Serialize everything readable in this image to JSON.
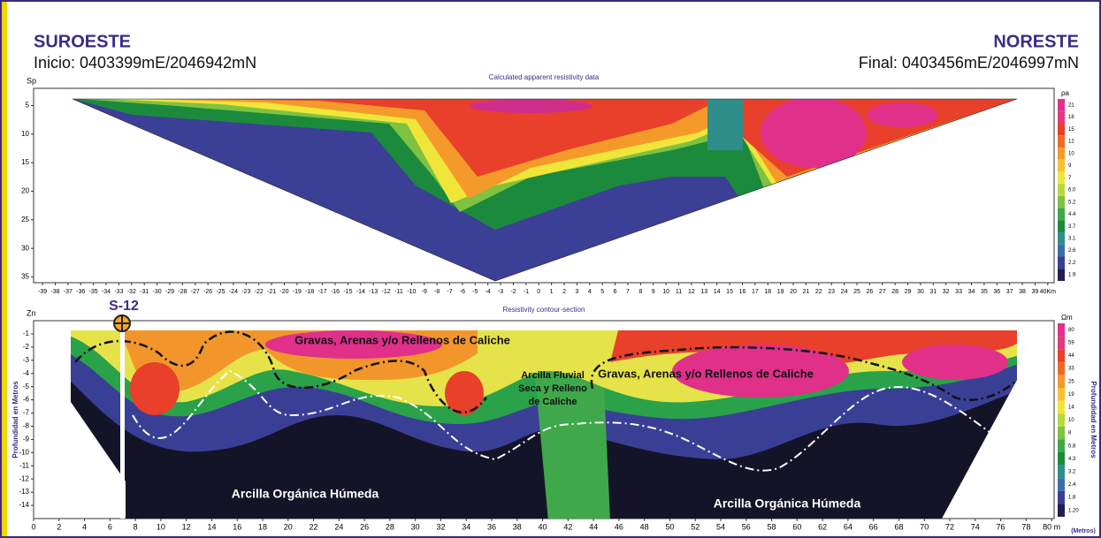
{
  "header": {
    "left_title": "SUROESTE",
    "left_subtitle": "Inicio: 0403399mE/2046942mN",
    "right_title": "NORESTE",
    "right_subtitle": "Final: 0403456mE/2046997mN"
  },
  "top_panel": {
    "title": "Calculated apparent resistivity data",
    "y_label": "Sp",
    "ylim": [
      2,
      36
    ],
    "yticks": [
      5,
      10,
      15,
      20,
      25,
      30,
      35
    ],
    "xlim": [
      -39.7,
      40.5
    ],
    "xticks": [
      -39,
      -38,
      -37,
      -36,
      -35,
      -34,
      -33,
      -32,
      -31,
      -30,
      -29,
      -28,
      -27,
      -26,
      -25,
      -24,
      -23,
      -22,
      -21,
      -20,
      -19,
      -18,
      -17,
      -16,
      -15,
      -14,
      -13,
      -12,
      -11,
      -10,
      -9,
      -8,
      -7,
      -6,
      -5,
      -4,
      -3,
      -2,
      -1,
      0,
      1,
      2,
      3,
      4,
      5,
      6,
      7,
      8,
      9,
      10,
      11,
      12,
      13,
      14,
      15,
      16,
      17,
      18,
      19,
      20,
      21,
      22,
      23,
      24,
      25,
      26,
      27,
      28,
      29,
      30,
      31,
      32,
      33,
      34,
      35,
      36,
      37,
      38,
      39,
      {
        "value": 40,
        "label": "40Km"
      }
    ],
    "colorbar": {
      "label": "ρa",
      "ticks": [
        21,
        18,
        15,
        12,
        10,
        9,
        7,
        {
          "value": 6,
          "label": "6.0"
        },
        5.2,
        4.4,
        3.7,
        3.1,
        2.6,
        2.2,
        1.9
      ]
    }
  },
  "bottom_panel": {
    "title": "Resistivity contour-section",
    "y_label": "Zn",
    "ylim": [
      0,
      -15
    ],
    "yticks": [
      -1,
      -2,
      -3,
      -4,
      -5,
      -6,
      -7,
      -8,
      -9,
      -10,
      -11,
      -12,
      -13,
      -14
    ],
    "xlim": [
      0,
      80.2
    ],
    "xticks": [
      0,
      2,
      4,
      6,
      8,
      10,
      12,
      14,
      16,
      18,
      20,
      22,
      24,
      26,
      28,
      30,
      32,
      34,
      36,
      38,
      40,
      42,
      44,
      46,
      48,
      50,
      52,
      54,
      56,
      58,
      60,
      62,
      64,
      66,
      68,
      70,
      72,
      74,
      76,
      78,
      {
        "value": 80,
        "label": "80 m"
      }
    ],
    "x_unit": "(Metros)",
    "axis_title": "Profundidad en Metros",
    "colorbar": {
      "label": "Ωm",
      "ticks": [
        80,
        59,
        44,
        33,
        25,
        19,
        14,
        10,
        8,
        5.8,
        4.3,
        3.2,
        2.4,
        1.8,
        {
          "value": 1.2,
          "label": "1.20"
        }
      ]
    },
    "borehole": "S-12",
    "annotations": [
      "Gravas, Arenas y/o Rellenos de Caliche",
      "Gravas, Arenas y/o Rellenos de Caliche",
      "Arcilla Fluvial Seca y Relleno de Caliche",
      "Arcilla Orgánica Húmeda",
      "Arcilla Orgánica Húmeda"
    ]
  }
}
